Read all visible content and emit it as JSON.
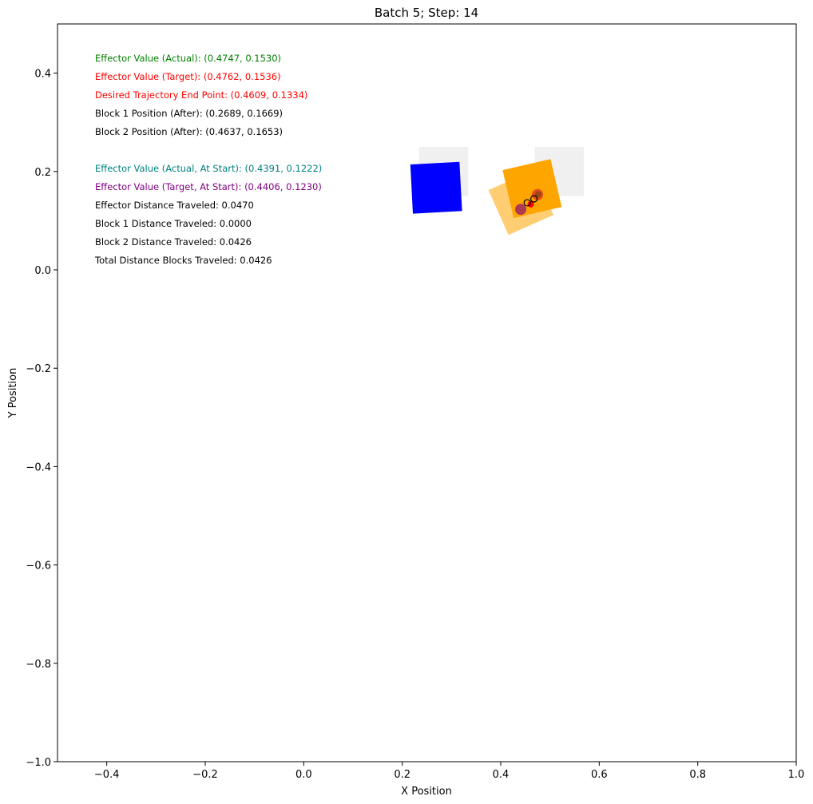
{
  "chart_data": {
    "type": "scatter",
    "title": "Batch 5; Step: 14",
    "xlabel": "X Position",
    "ylabel": "Y Position",
    "xlim": [
      -0.5,
      1.0
    ],
    "ylim": [
      -1.0,
      0.5
    ],
    "xticks": [
      -0.4,
      -0.2,
      0.0,
      0.2,
      0.4,
      0.6,
      0.8,
      1.0
    ],
    "yticks": [
      0.4,
      0.2,
      0.0,
      -0.2,
      -0.4,
      -0.6,
      -0.8,
      -1.0
    ],
    "xtick_labels": [
      "−0.4",
      "−0.2",
      "0.0",
      "0.2",
      "0.4",
      "0.6",
      "0.8",
      "1.0"
    ],
    "ytick_labels": [
      "0.4",
      "0.2",
      "0.0",
      "−0.2",
      "−0.4",
      "−0.6",
      "−0.8",
      "−1.0"
    ],
    "grid": false,
    "blocks": [
      {
        "name": "block-1-start",
        "center": [
          0.284,
          0.2
        ],
        "size": 0.1,
        "angle_deg": 0,
        "color": "#d9d9d9",
        "opacity": 0.4
      },
      {
        "name": "block-2-start",
        "center": [
          0.519,
          0.2
        ],
        "size": 0.1,
        "angle_deg": 0,
        "color": "#d9d9d9",
        "opacity": 0.4
      },
      {
        "name": "block-2-before",
        "center": [
          0.4411,
          0.1369
        ],
        "size": 0.1,
        "angle_deg": 24,
        "color": "#ffa500",
        "opacity": 0.55
      },
      {
        "name": "block-1-after",
        "center": [
          0.2689,
          0.1669
        ],
        "size": 0.1,
        "angle_deg": 3,
        "color": "#0000ff",
        "opacity": 1
      },
      {
        "name": "block-2-after",
        "center": [
          0.4637,
          0.1653
        ],
        "size": 0.1,
        "angle_deg": 13,
        "color": "#ffa500",
        "opacity": 1
      }
    ],
    "markers": [
      {
        "name": "effector-target-start-marker",
        "x": 0.4406,
        "y": 0.123,
        "color": "#800080",
        "opacity": 0.65,
        "r": 7
      },
      {
        "name": "effector-actual-marker",
        "x": 0.4747,
        "y": 0.153,
        "color": "#d62728",
        "opacity": 0.7,
        "r": 7
      },
      {
        "name": "effector-target-marker",
        "x": 0.4762,
        "y": 0.1536,
        "color": "#8b4513",
        "opacity": 0.8,
        "r": 4
      },
      {
        "name": "trajectory-end-marker",
        "x": 0.4609,
        "y": 0.1334,
        "color": "#ff0000",
        "opacity": 1,
        "r": 4
      }
    ],
    "trajectory": [
      [
        0.4538,
        0.1365
      ],
      [
        0.4675,
        0.1445
      ]
    ],
    "annotations": [
      {
        "text": "Effector Value (Actual): (0.4747, 0.1530)",
        "color": "#008000"
      },
      {
        "text": "Effector Value (Target): (0.4762, 0.1536)",
        "color": "#ff0000"
      },
      {
        "text": "Desired Trajectory End Point: (0.4609, 0.1334)",
        "color": "#ff0000"
      },
      {
        "text": "Block 1 Position (After): (0.2689, 0.1669)",
        "color": "#000000"
      },
      {
        "text": "Block 2 Position (After): (0.4637, 0.1653)",
        "color": "#000000"
      },
      {
        "text": "",
        "color": "#000000"
      },
      {
        "text": "Effector Value (Actual, At Start): (0.4391, 0.1222)",
        "color": "#008080"
      },
      {
        "text": "Effector Value (Target, At Start): (0.4406, 0.1230)",
        "color": "#800080"
      },
      {
        "text": "Effector Distance Traveled: 0.0470",
        "color": "#000000"
      },
      {
        "text": "Block 1 Distance Traveled: 0.0000",
        "color": "#000000"
      },
      {
        "text": "Block 2 Distance Traveled: 0.0426",
        "color": "#000000"
      },
      {
        "text": "Total Distance Blocks Traveled: 0.0426",
        "color": "#000000"
      }
    ]
  }
}
